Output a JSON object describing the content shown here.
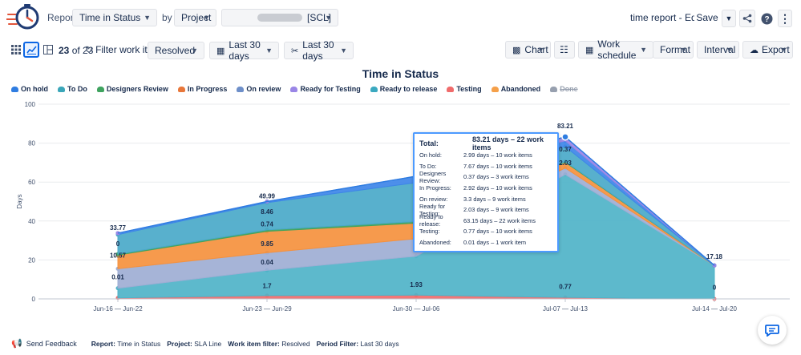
{
  "header": {
    "report_label": "Report:",
    "report_value": "Time in Status",
    "by_label": "by",
    "group_value": "Project",
    "project_value": "[SCL]",
    "edited_label": "time report - Edited",
    "save_label": "Save"
  },
  "toolbar": {
    "count_shown": "23",
    "count_of": "of 23",
    "filter_label": "Filter work items:",
    "filter_value": "Resolved",
    "period1": "Last 30 days",
    "period2": "Last 30 days",
    "chart_label": "Chart",
    "work_schedule_label": "Work schedule",
    "format_label": "Format",
    "interval_label": "Interval",
    "export_label": "Export"
  },
  "chart_data": {
    "type": "area",
    "title": "Time in Status",
    "ylabel": "Days",
    "ylim": [
      0,
      100
    ],
    "yticks": [
      "0",
      "20",
      "40",
      "60",
      "80",
      "100"
    ],
    "categories": [
      "Jun-16 — Jun-22",
      "Jun-23 — Jun-29",
      "Jun-30 — Jul-06",
      "Jul-07 — Jul-13",
      "Jul-14 — Jul-20"
    ],
    "legend_position": "top-left",
    "legend": [
      "On hold",
      "To Do",
      "Designers Review",
      "In Progress",
      "On review",
      "Ready for Testing",
      "Ready to release",
      "Testing",
      "Abandoned",
      "Done"
    ],
    "series": [
      {
        "name": "Testing",
        "color": "#f06b6b",
        "values": [
          0.5,
          1.7,
          1.93,
          0.77,
          0
        ]
      },
      {
        "name": "Ready to release",
        "color": "#4fb3c8",
        "values": [
          5,
          13,
          20,
          63.15,
          17.18
        ]
      },
      {
        "name": "On review",
        "color": "#9eaed4",
        "values": [
          10,
          9,
          9,
          3.3,
          0
        ]
      },
      {
        "name": "In Progress",
        "color": "#f5913e",
        "values": [
          7,
          11,
          8,
          2.92,
          0
        ]
      },
      {
        "name": "Designers Review",
        "color": "#3fa35f",
        "values": [
          0.5,
          0.74,
          0.8,
          0.37,
          0
        ]
      },
      {
        "name": "To Do",
        "color": "#4aa9c9",
        "values": [
          10,
          14,
          20,
          7.67,
          0
        ]
      },
      {
        "name": "On hold",
        "color": "#3e86e8",
        "values": [
          0.77,
          0.55,
          3.27,
          2.99,
          0
        ]
      },
      {
        "name": "Ready for Testing",
        "color": "#9a86e6",
        "values": [
          0,
          0,
          0,
          2.03,
          0
        ]
      }
    ],
    "point_labels": [
      {
        "text": "33.77",
        "cat": 0,
        "y": 33.77
      },
      {
        "text": "0",
        "cat": 0,
        "y": 25.5
      },
      {
        "text": "10.57",
        "cat": 0,
        "y": 19.5
      },
      {
        "text": "0.01",
        "cat": 0,
        "y": 8.5
      },
      {
        "text": "49.99",
        "cat": 1,
        "y": 49.99
      },
      {
        "text": "8.46",
        "cat": 1,
        "y": 42
      },
      {
        "text": "0.74",
        "cat": 1,
        "y": 35.5
      },
      {
        "text": "9.85",
        "cat": 1,
        "y": 25.5
      },
      {
        "text": "0.04",
        "cat": 1,
        "y": 16
      },
      {
        "text": "1.7",
        "cat": 1,
        "y": 4
      },
      {
        "text": "1.93",
        "cat": 2,
        "y": 4.5
      },
      {
        "text": "83.21",
        "cat": 3,
        "y": 86
      },
      {
        "text": "0.37",
        "cat": 3,
        "y": 74
      },
      {
        "text": "2.03",
        "cat": 3,
        "y": 67
      },
      {
        "text": "0.77",
        "cat": 3,
        "y": 3.5
      },
      {
        "text": "17.18",
        "cat": 4,
        "y": 19
      },
      {
        "text": "0",
        "cat": 4,
        "y": 3
      }
    ]
  },
  "legend_colors": [
    "#2f7de1",
    "#3aa6b9",
    "#3fa35f",
    "#e8773a",
    "#6e8fc9",
    "#9a86e6",
    "#3ba9c0",
    "#f06b6b",
    "#f5a04a",
    "#97a0af"
  ],
  "tooltip": {
    "total_label": "Total:",
    "total_value": "83.21 days – 22 work items",
    "rows": [
      {
        "k": "On hold:",
        "v": "2.99 days – 10 work items"
      },
      {
        "k": "To Do:",
        "v": "7.67 days – 10 work items"
      },
      {
        "k": "Designers Review:",
        "v": "0.37 days – 3 work items"
      },
      {
        "k": "In Progress:",
        "v": "2.92 days – 10 work items"
      },
      {
        "k": "On review:",
        "v": "3.3 days – 9 work items"
      },
      {
        "k": "Ready for Testing:",
        "v": "2.03 days – 9 work items"
      },
      {
        "k": "Ready to release:",
        "v": "63.15 days – 22 work items"
      },
      {
        "k": "Testing:",
        "v": "0.77 days – 10 work items"
      },
      {
        "k": "Abandoned:",
        "v": "0.01 days – 1 work item"
      }
    ]
  },
  "footer": {
    "send_feedback": "Send Feedback",
    "report_label": "Report:",
    "report_value": "Time in Status",
    "project_label": "Project:",
    "project_value": "SLA Line",
    "filter_label": "Work item filter:",
    "filter_value": "Resolved",
    "period_label": "Period Filter:",
    "period_value": "Last 30 days"
  },
  "icons": [
    "clock-logo-icon",
    "chevron-down-icon",
    "share-icon",
    "help-icon",
    "more-icon",
    "grid-icon",
    "line-chart-icon",
    "layout-icon",
    "refresh-icon",
    "calendar-icon",
    "tools-icon",
    "image-icon",
    "sliders-icon",
    "work-schedule-icon",
    "export-icon",
    "megaphone-icon",
    "chat-icon"
  ]
}
